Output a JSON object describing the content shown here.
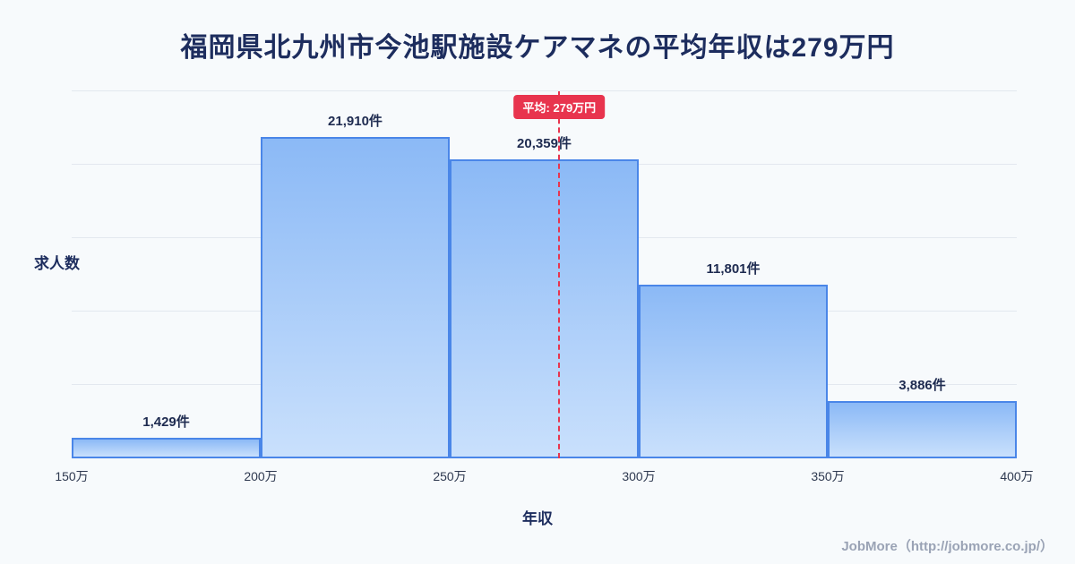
{
  "page": {
    "footer": "JobMore（http://jobmore.co.jp/）"
  },
  "chart_data": {
    "type": "bar",
    "title": "福岡県北九州市今池駅施設ケアマネの平均年収は279万円",
    "xlabel": "年収",
    "ylabel": "求人数",
    "categories": [
      "150万-200万",
      "200万-250万",
      "250万-300万",
      "300万-350万",
      "350万-400万"
    ],
    "values": [
      1429,
      21910,
      20359,
      11801,
      3886
    ],
    "value_labels": [
      "1,429件",
      "21,910件",
      "20,359件",
      "11,801件",
      "3,886件"
    ],
    "x_tick_labels": [
      "150万",
      "200万",
      "250万",
      "300万",
      "350万",
      "400万"
    ],
    "x_range": [
      150,
      400
    ],
    "ylim": [
      0,
      25000
    ],
    "gridline_step": 5000,
    "grid": "horizontal",
    "legend": "none",
    "average": {
      "value": 279,
      "label": "平均: 279万円"
    },
    "colors": {
      "background": "#f7fafc",
      "title_text": "#1d2d5e",
      "bar_fill_top": "#8bb9f6",
      "bar_fill_bottom": "#c9e0fc",
      "bar_border": "#4a86e8",
      "average_line": "#e8344e",
      "grid": "#e3e8ef",
      "value_label_text": "#1e2b50",
      "footer_text": "#9aa3b5"
    }
  }
}
